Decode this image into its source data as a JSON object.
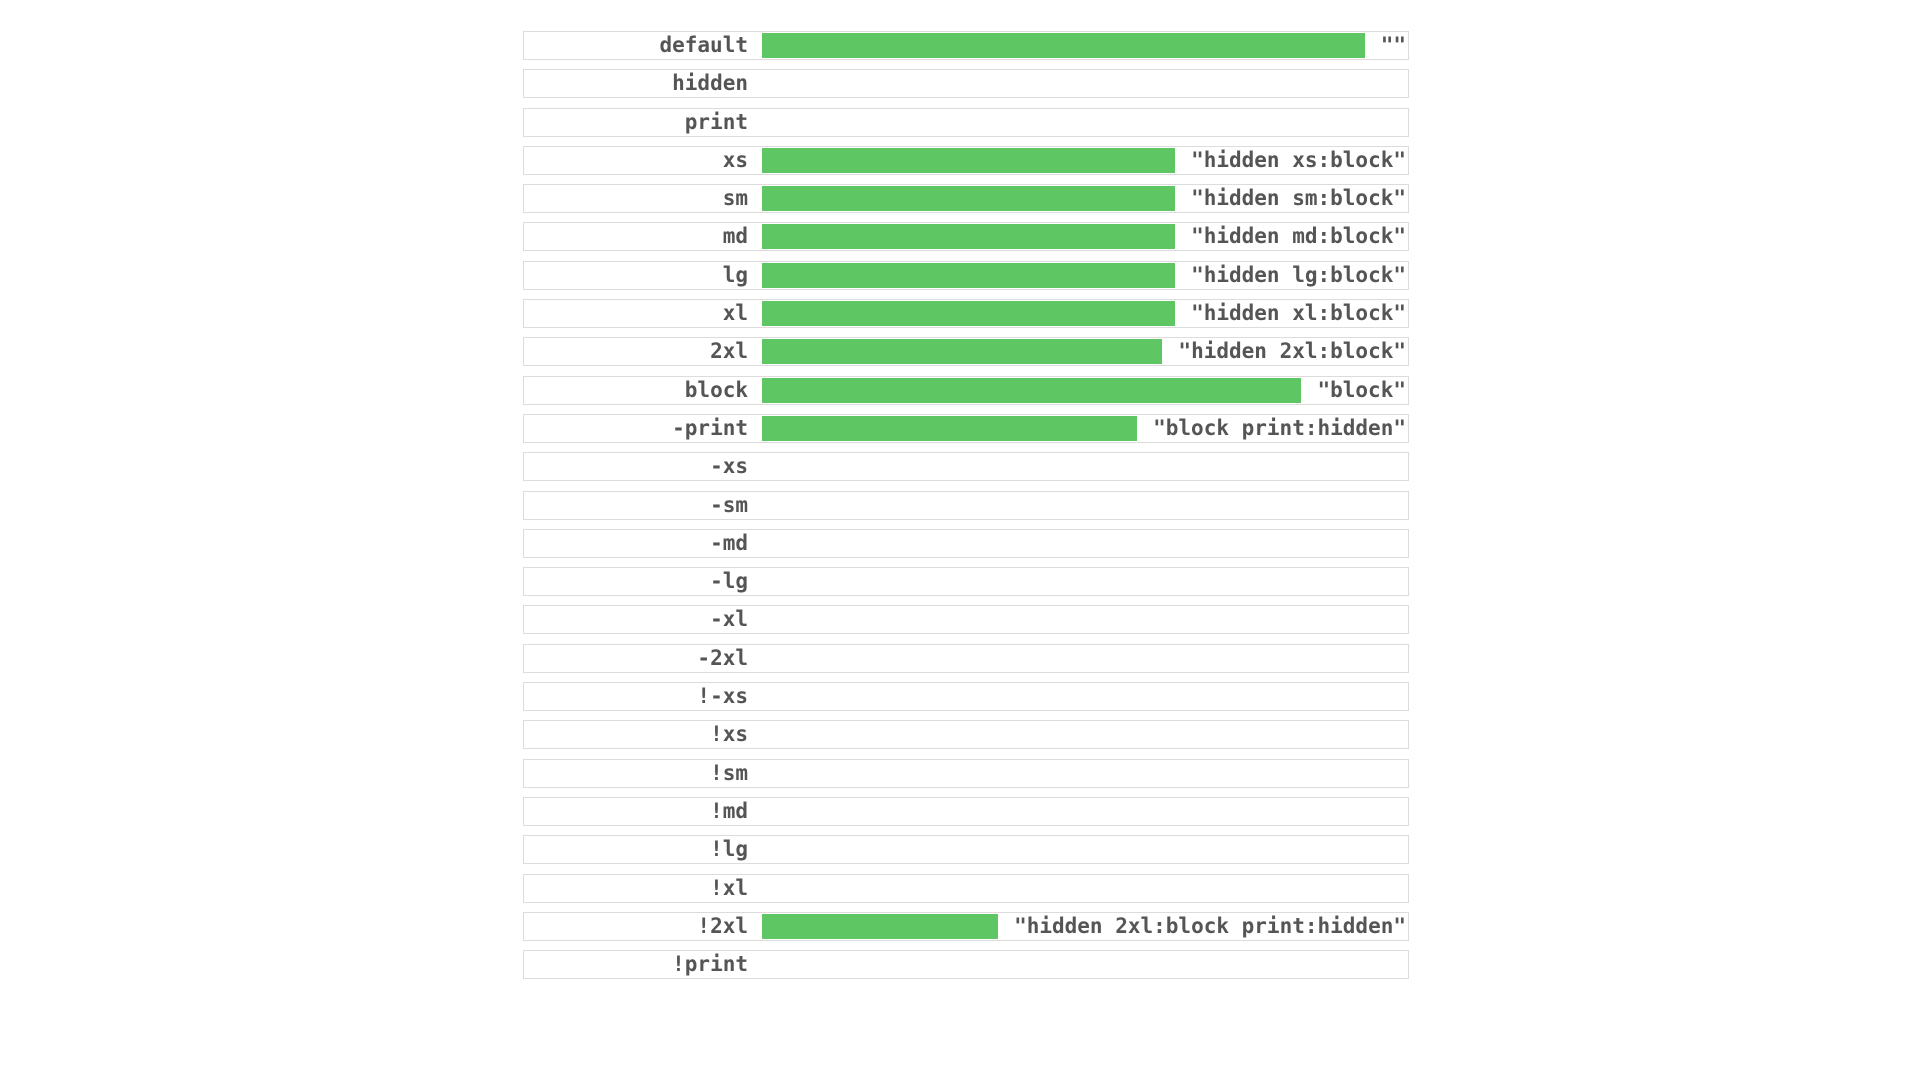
{
  "rows": [
    {
      "label": "default",
      "value": "\"\"",
      "visible": true
    },
    {
      "label": "hidden",
      "value": "",
      "visible": false
    },
    {
      "label": "print",
      "value": "",
      "visible": false
    },
    {
      "label": "xs",
      "value": "\"hidden xs:block\"",
      "visible": true
    },
    {
      "label": "sm",
      "value": "\"hidden sm:block\"",
      "visible": true
    },
    {
      "label": "md",
      "value": "\"hidden md:block\"",
      "visible": true
    },
    {
      "label": "lg",
      "value": "\"hidden lg:block\"",
      "visible": true
    },
    {
      "label": "xl",
      "value": "\"hidden xl:block\"",
      "visible": true
    },
    {
      "label": "2xl",
      "value": "\"hidden 2xl:block\"",
      "visible": true
    },
    {
      "label": "block",
      "value": "\"block\"",
      "visible": true
    },
    {
      "label": "-print",
      "value": "\"block print:hidden\"",
      "visible": true
    },
    {
      "label": "-xs",
      "value": "",
      "visible": false
    },
    {
      "label": "-sm",
      "value": "",
      "visible": false
    },
    {
      "label": "-md",
      "value": "",
      "visible": false
    },
    {
      "label": "-lg",
      "value": "",
      "visible": false
    },
    {
      "label": "-xl",
      "value": "",
      "visible": false
    },
    {
      "label": "-2xl",
      "value": "",
      "visible": false
    },
    {
      "label": "!-xs",
      "value": "",
      "visible": false
    },
    {
      "label": "!xs",
      "value": "",
      "visible": false
    },
    {
      "label": "!sm",
      "value": "",
      "visible": false
    },
    {
      "label": "!md",
      "value": "",
      "visible": false
    },
    {
      "label": "!lg",
      "value": "",
      "visible": false
    },
    {
      "label": "!xl",
      "value": "",
      "visible": false
    },
    {
      "label": "!2xl",
      "value": "\"hidden 2xl:block print:hidden\"",
      "visible": true
    },
    {
      "label": "!print",
      "value": "",
      "visible": false
    }
  ],
  "colors": {
    "bar": "#5ec663",
    "text": "#555555",
    "border": "#dcdcdc"
  }
}
